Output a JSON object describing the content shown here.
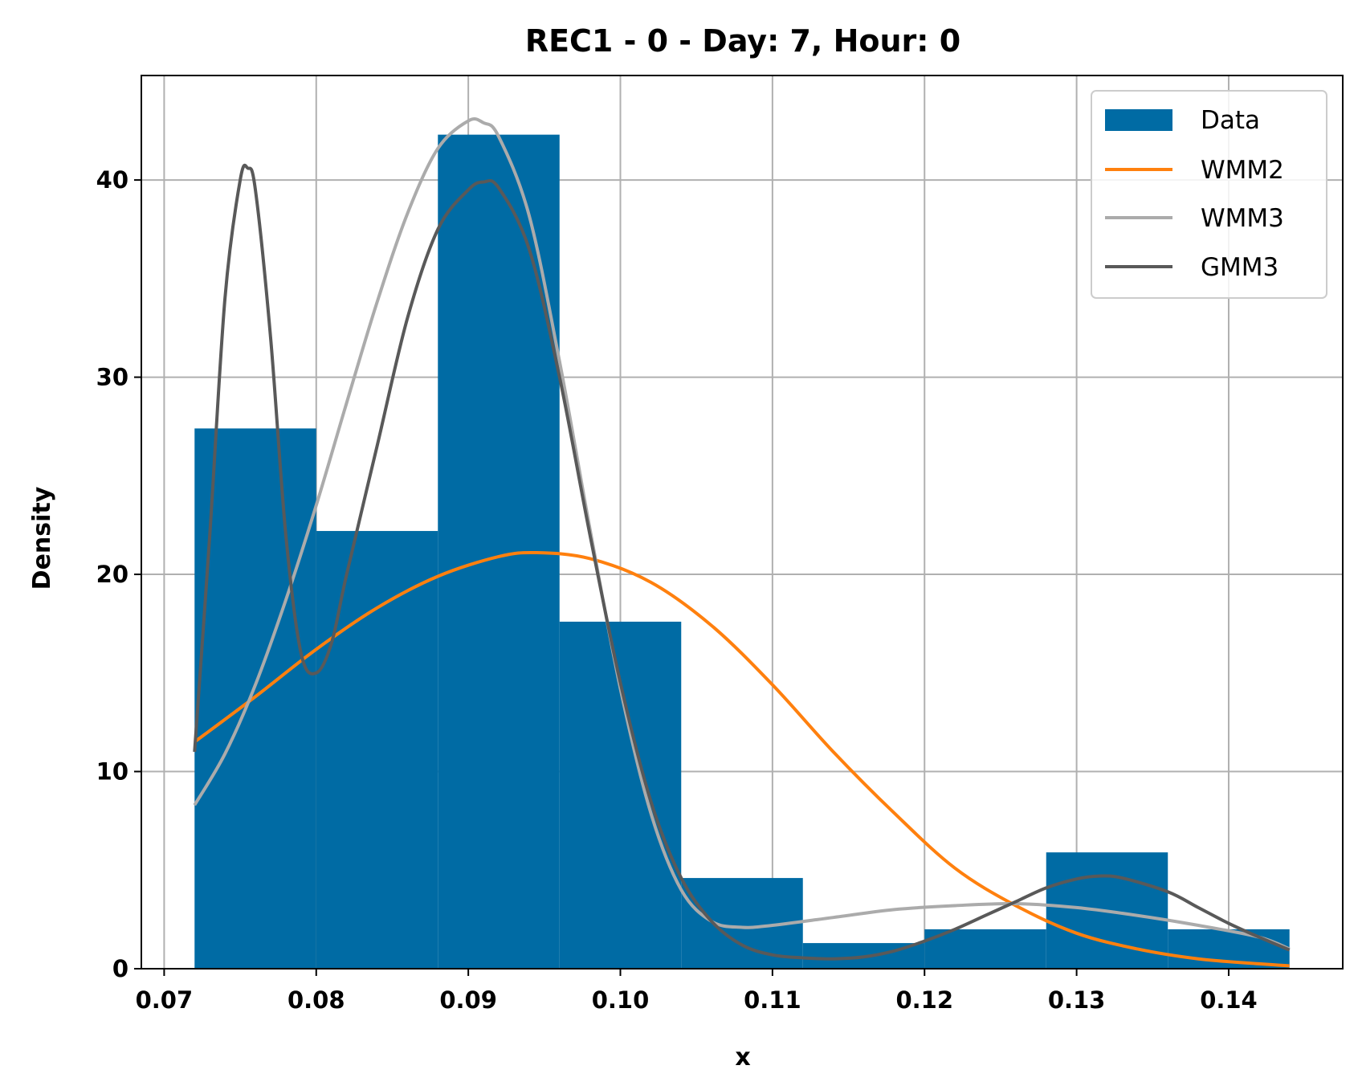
{
  "chart_data": {
    "type": "histogram-with-density-lines",
    "title": "REC1 - 0 - Day: 7, Hour: 0",
    "xlabel": "x",
    "ylabel": "Density",
    "xlim": [
      0.0685,
      0.1475
    ],
    "ylim": [
      0,
      45.3
    ],
    "xticks": [
      0.07,
      0.08,
      0.09,
      0.1,
      0.11,
      0.12,
      0.13,
      0.14
    ],
    "xtick_labels": [
      "0.07",
      "0.08",
      "0.09",
      "0.10",
      "0.11",
      "0.12",
      "0.13",
      "0.14"
    ],
    "yticks": [
      0,
      10,
      20,
      30,
      40
    ],
    "ytick_labels": [
      "0",
      "10",
      "20",
      "30",
      "40"
    ],
    "grid": true,
    "legend_position": "top-right",
    "histogram": {
      "name": "Data",
      "color": "#006ba4",
      "bin_edges": [
        0.072,
        0.08,
        0.088,
        0.096,
        0.104,
        0.112,
        0.12,
        0.128,
        0.136,
        0.144
      ],
      "heights": [
        27.4,
        22.2,
        42.3,
        17.6,
        4.6,
        1.3,
        2.0,
        5.9,
        2.0
      ]
    },
    "series": [
      {
        "name": "WMM2",
        "color": "#ff800e",
        "x": [
          0.072,
          0.076,
          0.08,
          0.084,
          0.088,
          0.092,
          0.0945,
          0.098,
          0.102,
          0.106,
          0.11,
          0.114,
          0.118,
          0.122,
          0.126,
          0.13,
          0.134,
          0.138,
          0.142,
          0.144
        ],
        "y": [
          11.5,
          13.8,
          16.2,
          18.3,
          19.9,
          20.9,
          21.1,
          20.8,
          19.6,
          17.4,
          14.4,
          11.0,
          7.9,
          5.1,
          3.2,
          1.8,
          1.0,
          0.5,
          0.25,
          0.15
        ]
      },
      {
        "name": "WMM3",
        "color": "#ababab",
        "x": [
          0.072,
          0.074,
          0.076,
          0.078,
          0.08,
          0.082,
          0.084,
          0.086,
          0.088,
          0.09,
          0.091,
          0.092,
          0.094,
          0.096,
          0.098,
          0.1,
          0.102,
          0.104,
          0.106,
          0.108,
          0.11,
          0.114,
          0.118,
          0.122,
          0.126,
          0.13,
          0.134,
          0.138,
          0.142,
          0.144
        ],
        "y": [
          8.3,
          10.9,
          14.4,
          18.7,
          23.5,
          28.7,
          33.8,
          38.3,
          41.6,
          43.0,
          42.9,
          42.2,
          38.2,
          30.8,
          22.3,
          14.2,
          7.9,
          4.0,
          2.4,
          2.1,
          2.2,
          2.6,
          3.0,
          3.2,
          3.3,
          3.1,
          2.7,
          2.2,
          1.6,
          1.0
        ]
      },
      {
        "name": "GMM3",
        "color": "#595959",
        "x": [
          0.072,
          0.073,
          0.074,
          0.075,
          0.0755,
          0.076,
          0.077,
          0.078,
          0.079,
          0.08,
          0.081,
          0.082,
          0.084,
          0.086,
          0.088,
          0.09,
          0.091,
          0.092,
          0.094,
          0.096,
          0.098,
          0.1,
          0.102,
          0.104,
          0.106,
          0.108,
          0.11,
          0.112,
          0.114,
          0.116,
          0.118,
          0.12,
          0.122,
          0.124,
          0.126,
          0.128,
          0.13,
          0.1315,
          0.133,
          0.136,
          0.138,
          0.14,
          0.142,
          0.144
        ],
        "y": [
          11.0,
          22.0,
          34.0,
          40.0,
          40.6,
          39.5,
          32.0,
          22.0,
          16.0,
          15.0,
          16.5,
          20.0,
          26.5,
          33.0,
          37.5,
          39.5,
          39.9,
          39.6,
          36.5,
          30.0,
          22.0,
          14.5,
          8.5,
          4.6,
          2.4,
          1.2,
          0.7,
          0.55,
          0.5,
          0.6,
          0.9,
          1.4,
          2.0,
          2.7,
          3.4,
          4.1,
          4.55,
          4.7,
          4.6,
          3.9,
          3.1,
          2.3,
          1.6,
          0.95
        ]
      }
    ]
  }
}
